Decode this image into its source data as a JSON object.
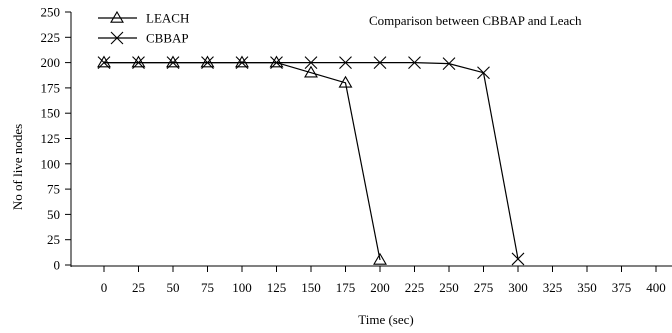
{
  "chart_data": {
    "type": "line",
    "title": "Comparison between CBBAP and Leach",
    "xlabel": "Time (sec)",
    "ylabel": "No of live nodes",
    "xlim": [
      0,
      400
    ],
    "ylim": [
      0,
      250
    ],
    "x_ticks": [
      0,
      25,
      50,
      75,
      100,
      125,
      150,
      175,
      200,
      225,
      250,
      275,
      300,
      325,
      350,
      375,
      400
    ],
    "y_ticks": [
      0,
      25,
      50,
      75,
      100,
      125,
      150,
      175,
      200,
      225,
      250
    ],
    "grid": false,
    "legend_position": "top-left",
    "series": [
      {
        "name": "LEACH",
        "marker": "triangle",
        "x": [
          0,
          25,
          50,
          75,
          100,
          125,
          150,
          175,
          200
        ],
        "y": [
          200,
          200,
          200,
          200,
          200,
          200,
          190,
          180,
          5
        ]
      },
      {
        "name": "CBBAP",
        "marker": "x",
        "x": [
          0,
          25,
          50,
          75,
          100,
          125,
          150,
          175,
          200,
          225,
          250,
          275,
          300
        ],
        "y": [
          200,
          200,
          200,
          200,
          200,
          200,
          200,
          200,
          200,
          200,
          199,
          190,
          6
        ]
      }
    ]
  }
}
